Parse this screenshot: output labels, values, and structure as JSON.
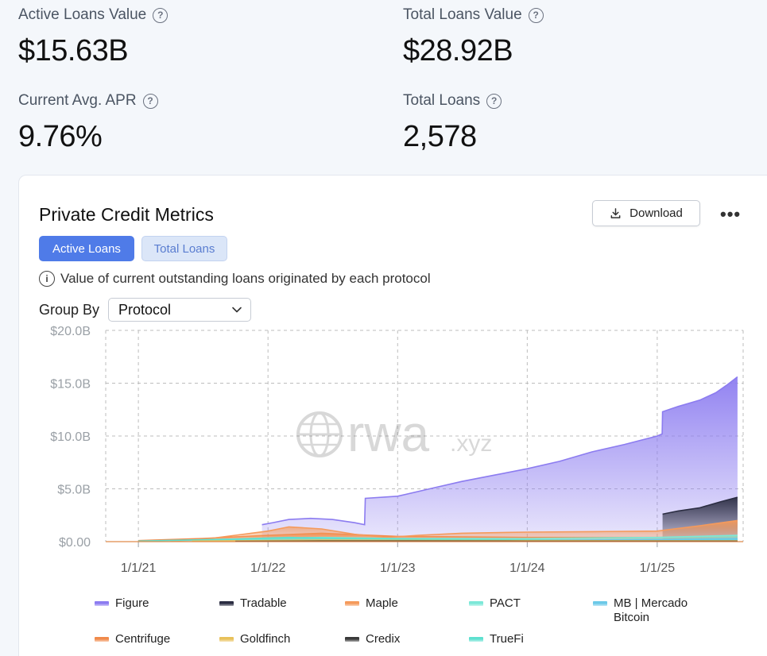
{
  "stats": {
    "active_value": {
      "label": "Active Loans Value",
      "value": "$15.63B"
    },
    "total_value": {
      "label": "Total Loans Value",
      "value": "$28.92B"
    },
    "apr": {
      "label": "Current Avg. APR",
      "value": "9.76%"
    },
    "total_loans": {
      "label": "Total Loans",
      "value": "2,578"
    }
  },
  "card": {
    "title": "Private Credit Metrics",
    "download_label": "Download",
    "more_label": "•••",
    "tabs": [
      {
        "label": "Active Loans",
        "active": true
      },
      {
        "label": "Total Loans",
        "active": false
      }
    ],
    "info_text": "Value of current outstanding loans originated by each protocol",
    "group_by_label": "Group By",
    "group_by_value": "Protocol"
  },
  "watermark": {
    "main": "rwa",
    "suffix": ".xyz"
  },
  "colors": {
    "accent": "#4f7be8",
    "figure": "#8c7cf0",
    "tradable": "#2b2d42",
    "maple": "#f59a5b",
    "pact": "#7ce8d8",
    "mb": "#6cc9e8",
    "centrifuge": "#f08a4b",
    "goldfinch": "#e8c15a",
    "credix": "#3a3a3a",
    "truefi": "#5ee0cf"
  },
  "chart_data": {
    "type": "area",
    "x_ticks": [
      "1/1/21",
      "1/1/22",
      "1/1/23",
      "1/1/24",
      "1/1/25"
    ],
    "y_ticks": [
      "$0.00",
      "$5.0B",
      "$10.0B",
      "$15.0B",
      "$20.0B"
    ],
    "ylim": [
      0,
      20
    ],
    "y_unit": "billions USD",
    "x_range": [
      "2020-10-01",
      "2025-08-31"
    ],
    "grid": true,
    "legend_position": "bottom",
    "series": [
      {
        "name": "Figure",
        "color": "#8c7cf0",
        "x": [
          "2021-12-15",
          "2022-01-15",
          "2022-03-01",
          "2022-05-01",
          "2022-07-01",
          "2022-09-01",
          "2022-09-30",
          "2022-10-02",
          "2023-01-01",
          "2023-04-01",
          "2023-07-01",
          "2023-10-01",
          "2024-01-01",
          "2024-04-01",
          "2024-07-01",
          "2024-10-01",
          "2025-01-01",
          "2025-01-15",
          "2025-01-16",
          "2025-03-01",
          "2025-05-01",
          "2025-06-15",
          "2025-07-15",
          "2025-08-15"
        ],
        "values": [
          1.6,
          1.8,
          2.1,
          2.2,
          2.1,
          1.8,
          1.6,
          4.1,
          4.3,
          5.0,
          5.7,
          6.3,
          6.9,
          7.6,
          8.5,
          9.2,
          10.0,
          10.2,
          12.3,
          12.8,
          13.4,
          14.1,
          14.8,
          15.6
        ]
      },
      {
        "name": "Tradable",
        "color": "#2b2d42",
        "x": [
          "2025-01-16",
          "2025-03-01",
          "2025-05-01",
          "2025-07-01",
          "2025-08-15"
        ],
        "values": [
          2.6,
          2.9,
          3.2,
          3.8,
          4.2
        ]
      },
      {
        "name": "Maple",
        "color": "#f59a5b",
        "x": [
          "2021-04-01",
          "2021-07-01",
          "2021-10-01",
          "2022-01-01",
          "2022-03-01",
          "2022-06-01",
          "2022-09-01",
          "2022-12-01",
          "2023-03-01",
          "2023-07-01",
          "2024-01-01",
          "2024-07-01",
          "2025-01-01",
          "2025-05-01",
          "2025-08-15"
        ],
        "values": [
          0.05,
          0.2,
          0.6,
          1.0,
          1.4,
          1.2,
          0.7,
          0.4,
          0.6,
          0.8,
          0.9,
          0.95,
          1.0,
          1.5,
          2.0
        ]
      },
      {
        "name": "PACT",
        "color": "#7ce8d8",
        "x": [
          "2021-07-01",
          "2022-01-01",
          "2022-06-01",
          "2023-01-01",
          "2024-01-01",
          "2025-01-01",
          "2025-08-15"
        ],
        "values": [
          0.1,
          0.3,
          0.4,
          0.3,
          0.3,
          0.4,
          0.6
        ]
      },
      {
        "name": "MB | Mercado Bitcoin",
        "color": "#6cc9e8",
        "x": [
          "2024-01-01",
          "2025-01-01",
          "2025-08-15"
        ],
        "values": [
          0.1,
          0.2,
          0.3
        ]
      },
      {
        "name": "Centrifuge",
        "color": "#f08a4b",
        "x": [
          "2021-01-01",
          "2021-07-01",
          "2022-01-01",
          "2022-06-01",
          "2023-01-01",
          "2024-01-01",
          "2025-01-01",
          "2025-08-15"
        ],
        "values": [
          0.1,
          0.3,
          0.6,
          0.8,
          0.5,
          0.4,
          0.4,
          0.5
        ]
      },
      {
        "name": "Goldfinch",
        "color": "#e8c15a",
        "x": [
          "2021-06-01",
          "2022-01-01",
          "2022-06-01",
          "2023-01-01",
          "2024-01-01",
          "2025-08-15"
        ],
        "values": [
          0.05,
          0.1,
          0.15,
          0.12,
          0.1,
          0.08
        ]
      },
      {
        "name": "Credix",
        "color": "#3a3a3a",
        "x": [
          "2021-10-01",
          "2022-06-01",
          "2023-01-01",
          "2024-01-01",
          "2025-08-15"
        ],
        "values": [
          0.02,
          0.05,
          0.05,
          0.04,
          0.03
        ]
      },
      {
        "name": "TrueFi",
        "color": "#5ee0cf",
        "x": [
          "2021-01-01",
          "2021-10-01",
          "2022-03-01",
          "2022-09-01",
          "2023-06-01",
          "2024-06-01",
          "2025-08-15"
        ],
        "values": [
          0.05,
          0.25,
          0.4,
          0.3,
          0.2,
          0.15,
          0.2
        ]
      }
    ]
  }
}
